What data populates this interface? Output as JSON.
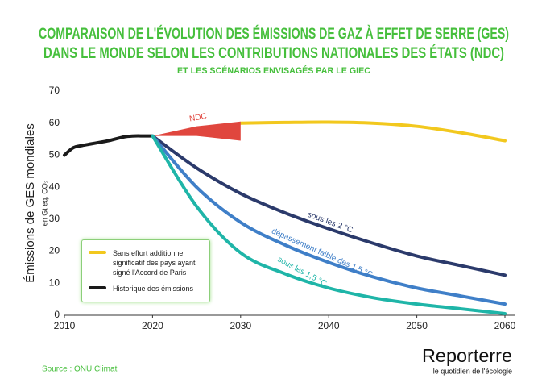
{
  "chart_data": {
    "type": "line",
    "title": [
      "COMPARAISON DE L'ÉVOLUTION DES ÉMISSIONS DE GAZ À EFFET DE SERRE (GES)",
      "DANS LE MONDE SELON LES CONTRIBUTIONS NATIONALES DES ÉTATS (NDC)"
    ],
    "subtitle": "ET LES SCÉNARIOS ENVISAGÉS PAR LE GIEC",
    "y_label": "Émissions de GES mondiales",
    "y_unit": "en Gt eq. CO₂",
    "xlim": [
      2010,
      2060
    ],
    "xticks": [
      2010,
      2020,
      2030,
      2040,
      2050,
      2060
    ],
    "ylim": [
      0,
      70
    ],
    "yticks": [
      0,
      10,
      20,
      30,
      40,
      50,
      60,
      70
    ],
    "grid": false,
    "series": [
      {
        "name": "Sans effort additionnel significatif des pays ayant signé l'Accord de Paris",
        "color": "#f2c81e",
        "in_legend": true,
        "x": [
          2030,
          2035,
          2040,
          2045,
          2050,
          2055,
          2060
        ],
        "values": [
          60,
          60.2,
          60.3,
          60,
          59,
          57,
          54.5
        ]
      },
      {
        "name": "Historique des émissions",
        "color": "#1a1a1a",
        "in_legend": true,
        "x": [
          2010,
          2011,
          2012,
          2013,
          2014,
          2015,
          2016,
          2017,
          2018,
          2019,
          2020
        ],
        "values": [
          50,
          52.3,
          53,
          53.5,
          54,
          54.5,
          55.2,
          55.8,
          56,
          56,
          56
        ]
      },
      {
        "name": "NDC",
        "color": "#e0463e",
        "in_legend": false,
        "area": true,
        "x": [
          2020,
          2025,
          2030
        ],
        "values": [
          56,
          59,
          60.5
        ],
        "low": [
          56,
          56,
          54.5
        ]
      },
      {
        "name": "sous les 2 °C",
        "color": "#2b3a6b",
        "in_legend": false,
        "x": [
          2020,
          2025,
          2030,
          2035,
          2040,
          2045,
          2050,
          2055,
          2060
        ],
        "values": [
          56,
          46,
          38,
          32,
          27,
          22.5,
          18.5,
          15.5,
          12.5
        ]
      },
      {
        "name": "dépassement faible des 1,5 °C",
        "color": "#3f7fc8",
        "in_legend": false,
        "x": [
          2020,
          2025,
          2030,
          2035,
          2040,
          2045,
          2050,
          2055,
          2060
        ],
        "values": [
          56,
          40,
          29,
          22,
          16.5,
          12,
          8.5,
          6,
          3.5
        ]
      },
      {
        "name": "sous les 1,5 °C",
        "color": "#1fb5a8",
        "in_legend": false,
        "x": [
          2020,
          2025,
          2030,
          2035,
          2040,
          2045,
          2050,
          2055,
          2060
        ],
        "values": [
          56,
          34,
          19.5,
          13,
          8.5,
          5.5,
          3.5,
          2,
          0.5
        ]
      }
    ]
  },
  "source": "Source : ONU Climat",
  "branding": {
    "name": "Reporterre",
    "tagline": "le quotidien de l'écologie"
  }
}
